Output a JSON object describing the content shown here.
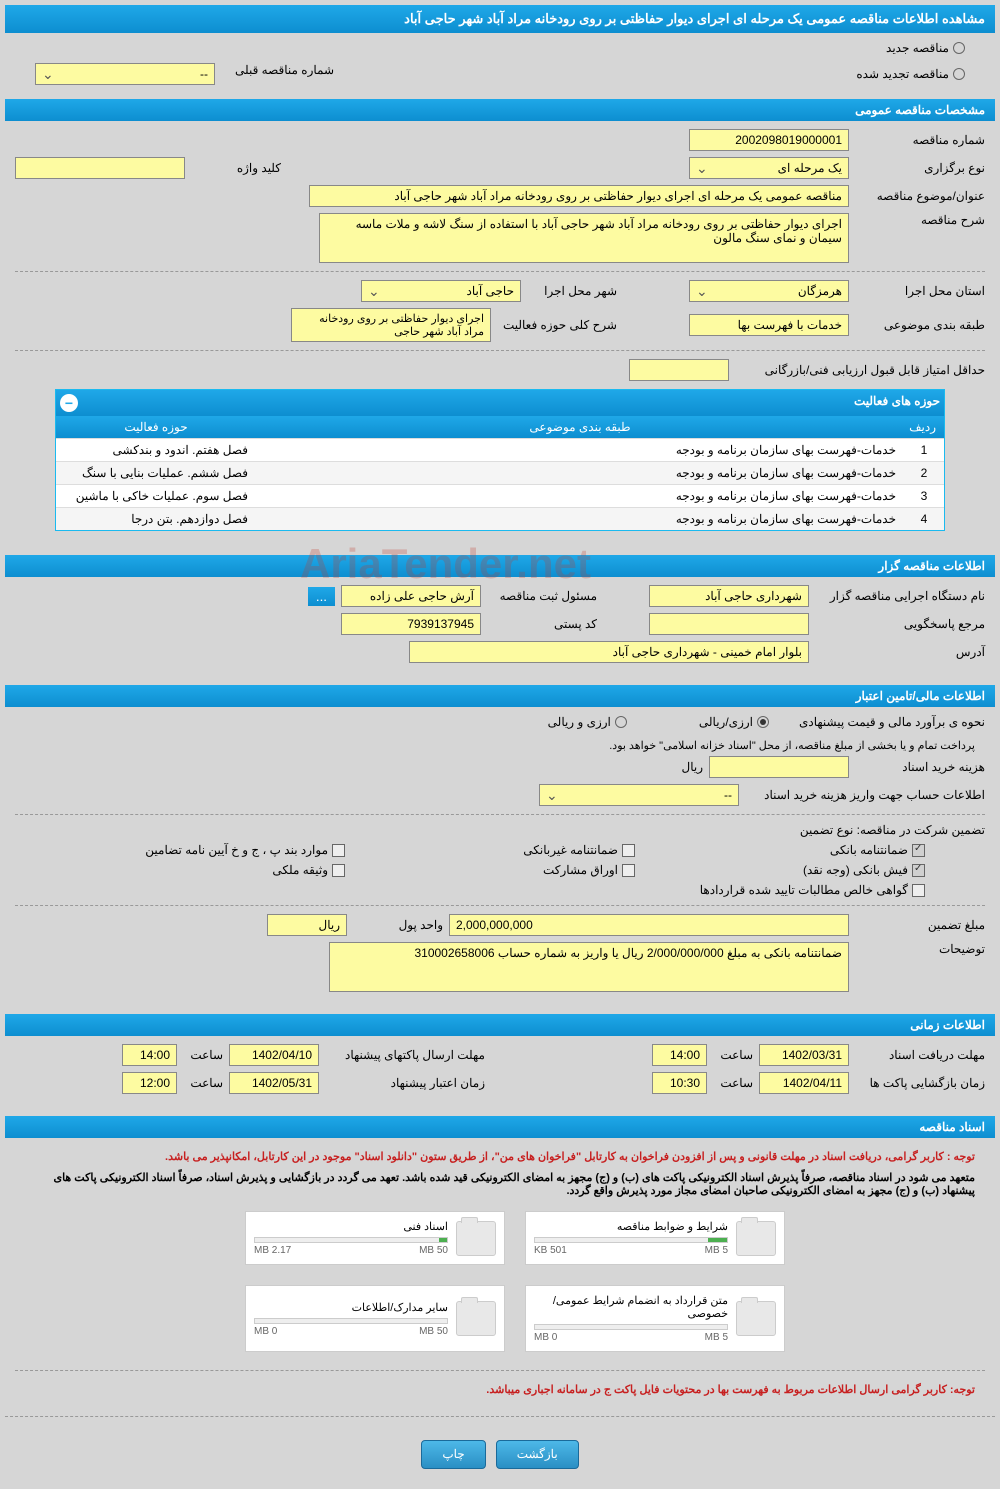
{
  "page_title": "مشاهده اطلاعات مناقصه عمومی یک مرحله ای اجرای دیوار حفاظتی بر روی رودخانه مراد آباد شهر حاجی آباد",
  "top_radio": {
    "new_tender": "مناقصه جدید",
    "renewed_tender": "مناقصه تجدید شده"
  },
  "prev_tender_dropdown": {
    "label": "شماره مناقصه قبلی",
    "value": "--"
  },
  "sections": {
    "general": "مشخصات مناقصه عمومی",
    "holder": "اطلاعات مناقصه گزار",
    "financial": "اطلاعات مالی/تامین اعتبار",
    "timing": "اطلاعات زمانی",
    "documents": "اسناد مناقصه"
  },
  "general": {
    "tender_no_label": "شماره مناقصه",
    "tender_no": "2002098019000001",
    "type_label": "نوع برگزاری",
    "type_value": "یک مرحله ای",
    "keyword_label": "کلید واژه",
    "keyword_value": "",
    "subject_label": "عنوان/موضوع مناقصه",
    "subject_value": "مناقصه عمومی یک مرحله ای اجرای دیوار حفاظتی بر روی رودخانه مراد آباد شهر حاجی آباد",
    "desc_label": "شرح مناقصه",
    "desc_value": "اجرای دیوار حفاظتی بر روی رودخانه مراد آباد شهر حاجی آباد با استفاده از سنگ لاشه و ملات ماسه سیمان و نمای سنگ مالون",
    "province_label": "استان محل اجرا",
    "province_value": "هرمزگان",
    "city_label": "شهر محل اجرا",
    "city_value": "حاجی آباد",
    "classification_label": "طبقه بندی موضوعی",
    "classification_value": "خدمات با فهرست بها",
    "scope_label": "شرح کلی حوزه فعالیت",
    "scope_value": "اجرای دیوار حفاظتی بر روی رودخانه مراد آباد شهر حاجی",
    "min_score_label": "حداقل امتیاز قابل قبول ارزیابی فنی/بازرگانی",
    "min_score_value": ""
  },
  "activities_table": {
    "title": "حوزه های فعالیت",
    "col_row": "ردیف",
    "col_cat": "طبقه بندی موضوعی",
    "col_act": "حوزه فعالیت",
    "rows": [
      {
        "n": "1",
        "cat": "خدمات-فهرست بهای سازمان برنامه و بودجه",
        "act": "فصل هفتم. اندود و بندکشی"
      },
      {
        "n": "2",
        "cat": "خدمات-فهرست بهای سازمان برنامه و بودجه",
        "act": "فصل ششم. عملیات بنایی با سنگ"
      },
      {
        "n": "3",
        "cat": "خدمات-فهرست بهای سازمان برنامه و بودجه",
        "act": "فصل سوم. عملیات خاکی با ماشین"
      },
      {
        "n": "4",
        "cat": "خدمات-فهرست بهای سازمان برنامه و بودجه",
        "act": "فصل دوازدهم. بتن درجا"
      }
    ]
  },
  "holder": {
    "org_label": "نام دستگاه اجرایی مناقصه گزار",
    "org_value": "شهرداری حاجی آباد",
    "resp_label": "مسئول ثبت مناقصه",
    "resp_value": "آرش حاجی علی زاده",
    "contact_label": "مرجع پاسخگویی",
    "contact_value": "",
    "postal_label": "کد پستی",
    "postal_value": "7939137945",
    "address_label": "آدرس",
    "address_value": "بلوار امام خمینی - شهرداری حاجی آباد"
  },
  "financial": {
    "estimate_label": "نحوه ی برآورد مالی و قیمت پیشنهادی",
    "radio_arzi_riali": "ارزی/ریالی",
    "radio_arzi_o_riali": "ارزی و ریالی",
    "payment_note": "پرداخت تمام و یا بخشی از مبلغ مناقصه، از محل \"اسناد خزانه اسلامی\" خواهد بود.",
    "doc_cost_label": "هزینه خرید اسناد",
    "doc_cost_value": "",
    "currency_rial": "ریال",
    "account_label": "اطلاعات حساب جهت واریز هزینه خرید اسناد",
    "account_value": "--",
    "guarantee_intro": "تضمین شرکت در مناقصه:   نوع تضمین",
    "cb_bank_guarantee": "ضمانتنامه بانکی",
    "cb_nonbank": "ضمانتنامه غیربانکی",
    "cb_items": "موارد بند پ ، ج و خ آیین نامه تضامین",
    "cb_bank_receipt": "فیش بانکی (وجه نقد)",
    "cb_bonds": "اوراق مشارکت",
    "cb_property": "وثیقه ملکی",
    "cb_certificate": "گواهی خالص مطالبات تایید شده قراردادها",
    "amount_label": "مبلغ تضمین",
    "amount_value": "2,000,000,000",
    "unit_label": "واحد پول",
    "unit_value": "ریال",
    "notes_label": "توضیحات",
    "notes_value": "ضمانتنامه بانکی به مبلغ 2/000/000/000 ریال یا واریز به شماره حساب 310002658006"
  },
  "timing": {
    "receive_label": "مهلت دریافت اسناد",
    "receive_date": "1402/03/31",
    "receive_time": "14:00",
    "send_label": "مهلت ارسال پاکتهای پیشنهاد",
    "send_date": "1402/04/10",
    "send_time": "14:00",
    "open_label": "زمان بازگشایی پاکت ها",
    "open_date": "1402/04/11",
    "open_time": "10:30",
    "valid_label": "زمان اعتبار پیشنهاد",
    "valid_date": "1402/05/31",
    "valid_time": "12:00",
    "time_label": "ساعت"
  },
  "docs": {
    "note1": "توجه : کاربر گرامی، دریافت اسناد در مهلت قانونی و پس از افزودن فراخوان به کارتابل \"فراخوان های من\"، از طریق ستون \"دانلود اسناد\" موجود در این کارتابل، امکانپذیر می باشد.",
    "note2": "متعهد می شود در اسناد مناقصه، صرفاً پذیرش اسناد الکترونیکی پاکت های (ب) و (ج) مجهز به امضای الکترونیکی قید شده باشد. تعهد می گردد در بازگشایی و پذیرش اسناد، صرفاً اسناد الکترونیکی پاکت های پیشنهاد (ب) و (ج) مجهز به امضای الکترونیکی صاحبان امضای مجاز مورد پذیرش واقع گردد.",
    "cards": [
      {
        "title": "شرایط و ضوابط مناقصه",
        "used": "501 KB",
        "total": "5 MB",
        "pct": 10
      },
      {
        "title": "اسناد فنی",
        "used": "2.17 MB",
        "total": "50 MB",
        "pct": 4
      },
      {
        "title": "متن قرارداد به انضمام شرایط عمومی/خصوصی",
        "used": "0 MB",
        "total": "5 MB",
        "pct": 0
      },
      {
        "title": "سایر مدارک/اطلاعات",
        "used": "0 MB",
        "total": "50 MB",
        "pct": 0
      }
    ],
    "bottom_note": "توجه: کاربر گرامی ارسال اطلاعات مربوط به فهرست بها در محتویات فایل پاکت ج در سامانه اجباری میباشد."
  },
  "buttons": {
    "back": "بازگشت",
    "print": "چاپ"
  },
  "watermark": "AriaTender.net",
  "colors": {
    "header_bg": "#1fa8e8",
    "field_bg": "#fdfba1",
    "body_bg": "#d6d6d6"
  }
}
